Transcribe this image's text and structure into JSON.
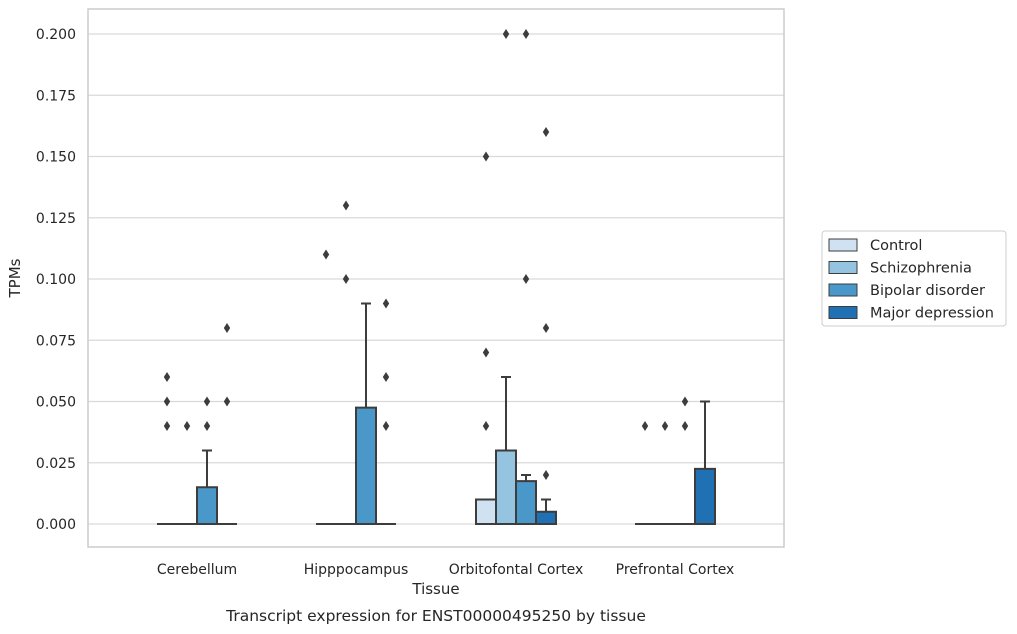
{
  "chart_data": {
    "type": "box",
    "caption": "Transcript expression for ENST00000495250 by tissue",
    "xlabel": "Tissue",
    "ylabel": "TPMs",
    "ylim": [
      -0.01,
      0.21
    ],
    "yticks": [
      0.0,
      0.025,
      0.05,
      0.075,
      0.1,
      0.125,
      0.15,
      0.175,
      0.2
    ],
    "ytick_labels": [
      "0.000",
      "0.025",
      "0.050",
      "0.075",
      "0.100",
      "0.125",
      "0.150",
      "0.175",
      "0.200"
    ],
    "grid": "horizontal",
    "legend_position": "right",
    "categories": [
      "Cerebellum",
      "Hipppocampus",
      "Orbitofontal Cortex",
      "Prefrontal Cortex"
    ],
    "series": [
      {
        "name": "Control",
        "color": "#d0e1f2",
        "boxes": [
          {
            "q1": 0.0,
            "median": 0.0,
            "q3": 0.0,
            "whisker_low": 0.0,
            "whisker_high": 0.0,
            "outliers": [
              0.04,
              0.05,
              0.06
            ]
          },
          {
            "q1": 0.0,
            "median": 0.0,
            "q3": 0.0,
            "whisker_low": 0.0,
            "whisker_high": 0.0,
            "outliers": [
              0.11
            ]
          },
          {
            "q1": 0.0,
            "median": 0.0,
            "q3": 0.01,
            "whisker_low": 0.0,
            "whisker_high": 0.01,
            "outliers": [
              0.04,
              0.07,
              0.15
            ]
          },
          {
            "q1": 0.0,
            "median": 0.0,
            "q3": 0.0,
            "whisker_low": 0.0,
            "whisker_high": 0.0,
            "outliers": [
              0.04
            ]
          }
        ]
      },
      {
        "name": "Schizophrenia",
        "color": "#94c4df",
        "boxes": [
          {
            "q1": 0.0,
            "median": 0.0,
            "q3": 0.0,
            "whisker_low": 0.0,
            "whisker_high": 0.0,
            "outliers": [
              0.04
            ]
          },
          {
            "q1": 0.0,
            "median": 0.0,
            "q3": 0.0,
            "whisker_low": 0.0,
            "whisker_high": 0.0,
            "outliers": [
              0.1,
              0.13
            ]
          },
          {
            "q1": 0.0,
            "median": 0.0,
            "q3": 0.03,
            "whisker_low": 0.0,
            "whisker_high": 0.06,
            "outliers": [
              0.2
            ]
          },
          {
            "q1": 0.0,
            "median": 0.0,
            "q3": 0.0,
            "whisker_low": 0.0,
            "whisker_high": 0.0,
            "outliers": [
              0.04
            ]
          }
        ]
      },
      {
        "name": "Bipolar disorder",
        "color": "#4a98c9",
        "boxes": [
          {
            "q1": 0.0,
            "median": 0.0,
            "q3": 0.015,
            "whisker_low": 0.0,
            "whisker_high": 0.03,
            "outliers": [
              0.04,
              0.05
            ]
          },
          {
            "q1": 0.0,
            "median": 0.0,
            "q3": 0.0475,
            "whisker_low": 0.0,
            "whisker_high": 0.09,
            "outliers": []
          },
          {
            "q1": 0.0,
            "median": 0.0,
            "q3": 0.0175,
            "whisker_low": 0.0,
            "whisker_high": 0.02,
            "outliers": [
              0.1,
              0.2
            ]
          },
          {
            "q1": 0.0,
            "median": 0.0,
            "q3": 0.0,
            "whisker_low": 0.0,
            "whisker_high": 0.0,
            "outliers": [
              0.04,
              0.05
            ]
          }
        ]
      },
      {
        "name": "Major depression",
        "color": "#2070b4",
        "boxes": [
          {
            "q1": 0.0,
            "median": 0.0,
            "q3": 0.0,
            "whisker_low": 0.0,
            "whisker_high": 0.0,
            "outliers": [
              0.05,
              0.08
            ]
          },
          {
            "q1": 0.0,
            "median": 0.0,
            "q3": 0.0,
            "whisker_low": 0.0,
            "whisker_high": 0.0,
            "outliers": [
              0.04,
              0.06,
              0.09
            ]
          },
          {
            "q1": 0.0,
            "median": 0.0,
            "q3": 0.005,
            "whisker_low": 0.0,
            "whisker_high": 0.01,
            "outliers": [
              0.02,
              0.08,
              0.16
            ]
          },
          {
            "q1": 0.0,
            "median": 0.0,
            "q3": 0.0225,
            "whisker_low": 0.0,
            "whisker_high": 0.05,
            "outliers": []
          }
        ]
      }
    ]
  }
}
